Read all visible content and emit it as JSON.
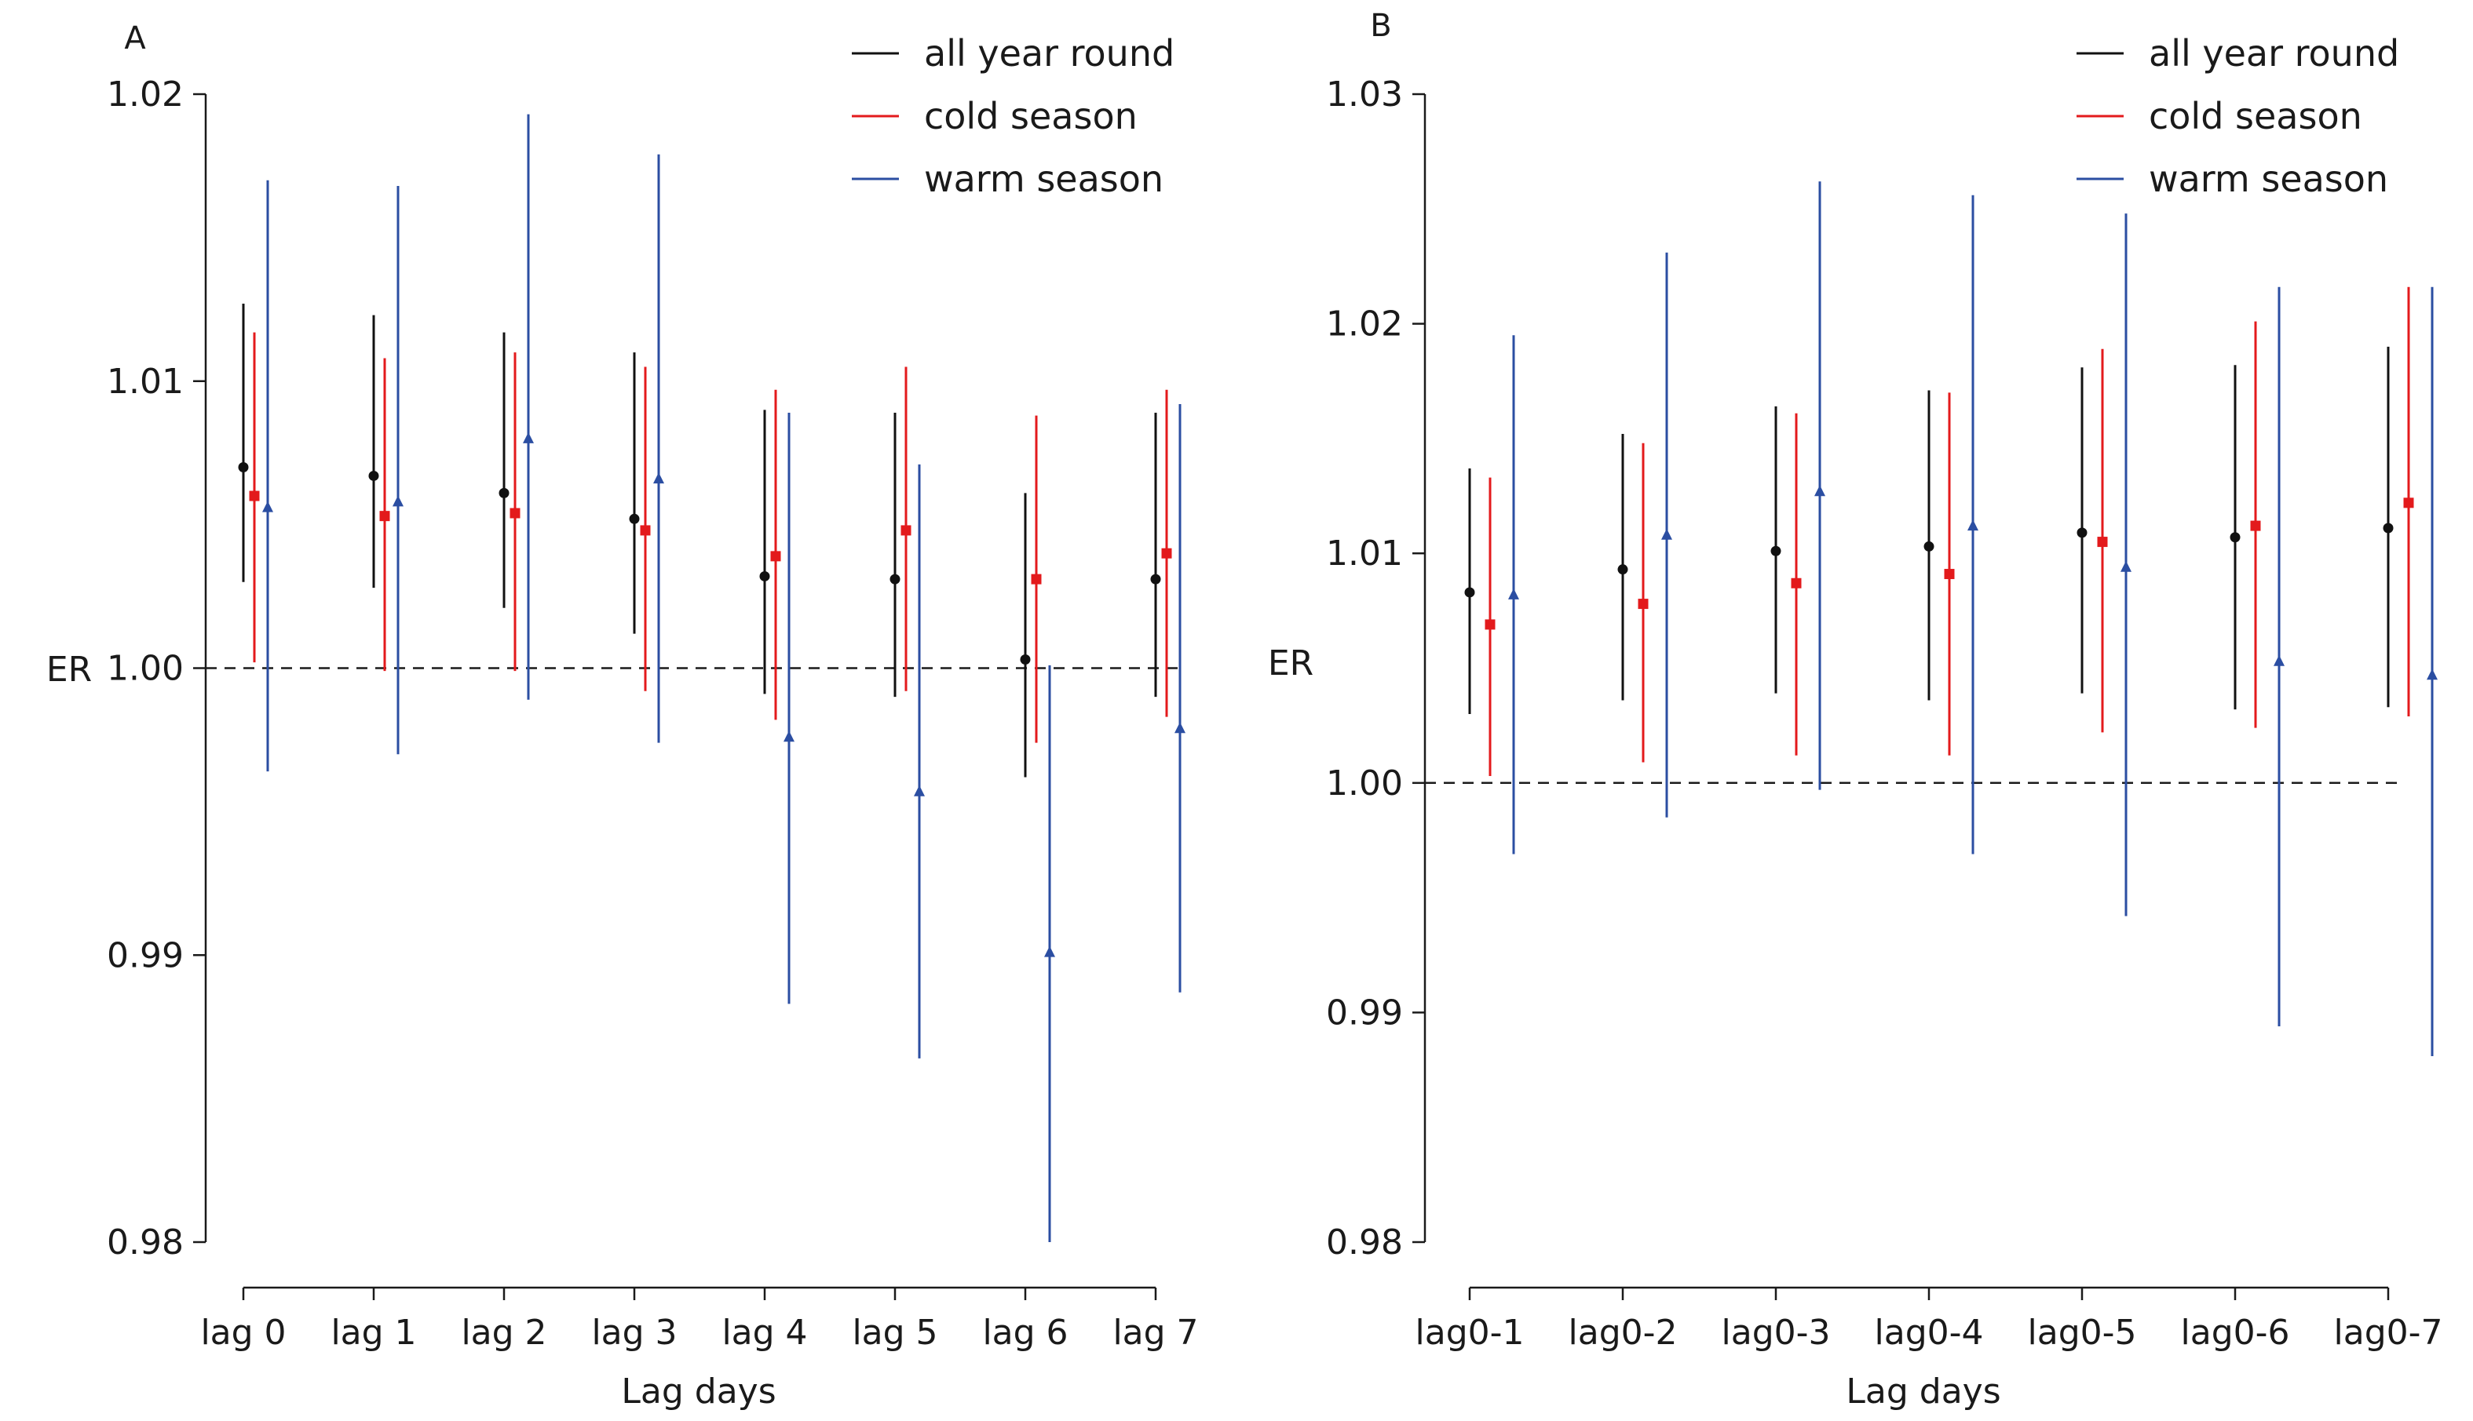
{
  "chart_data": [
    {
      "type": "errorbar",
      "panel_label": "A",
      "xlabel": "Lag days",
      "ylabel": "ER",
      "categories": [
        "lag 0",
        "lag 1",
        "lag 2",
        "lag 3",
        "lag 4",
        "lag 5",
        "lag 6",
        "lag 7"
      ],
      "ylim": [
        0.98,
        1.02
      ],
      "yticks": [
        0.98,
        0.99,
        1.0,
        1.01,
        1.02
      ],
      "ytick_labels": [
        "0.98",
        "0.99",
        "1.00",
        "1.01",
        "1.02"
      ],
      "reference_line": 1.0,
      "legend_position": "top-right",
      "series": [
        {
          "name": "all year round",
          "color": "#111111",
          "marker": "circle",
          "values": [
            1.007,
            1.0067,
            1.0061,
            1.0052,
            1.0032,
            1.0031,
            1.0003,
            1.0031
          ],
          "lower": [
            1.003,
            1.0028,
            1.0021,
            1.0012,
            0.9991,
            0.999,
            0.9962,
            0.999
          ],
          "upper": [
            1.0127,
            1.0123,
            1.0117,
            1.011,
            1.009,
            1.0089,
            1.0061,
            1.0089
          ]
        },
        {
          "name": "cold season",
          "color": "#e31a1c",
          "marker": "square",
          "values": [
            1.006,
            1.0053,
            1.0054,
            1.0048,
            1.0039,
            1.0048,
            1.0031,
            1.004
          ],
          "lower": [
            1.0002,
            0.9999,
            0.9999,
            0.9992,
            0.9982,
            0.9992,
            0.9974,
            0.9983
          ],
          "upper": [
            1.0117,
            1.0108,
            1.011,
            1.0105,
            1.0097,
            1.0105,
            1.0088,
            1.0097
          ]
        },
        {
          "name": "warm season",
          "color": "#2b4ea2",
          "marker": "triangle",
          "values": [
            1.0056,
            1.0058,
            1.008,
            1.0066,
            0.9976,
            0.9957,
            0.9901,
            0.9979
          ],
          "lower": [
            0.9964,
            0.997,
            0.9989,
            0.9974,
            0.9883,
            0.9864,
            0.98,
            0.9887
          ],
          "upper": [
            1.017,
            1.0168,
            1.0193,
            1.0179,
            1.0089,
            1.0071,
            1.0001,
            1.0092
          ]
        }
      ]
    },
    {
      "type": "errorbar",
      "panel_label": "B",
      "xlabel": "Lag days",
      "ylabel": "ER",
      "categories": [
        "lag0-1",
        "lag0-2",
        "lag0-3",
        "lag0-4",
        "lag0-5",
        "lag0-6",
        "lag0-7"
      ],
      "ylim": [
        0.98,
        1.03
      ],
      "yticks": [
        0.98,
        0.99,
        1.0,
        1.01,
        1.02,
        1.03
      ],
      "ytick_labels": [
        "0.98",
        "0.99",
        "1.00",
        "1.01",
        "1.02",
        "1.03"
      ],
      "reference_line": 1.0,
      "legend_position": "top-right",
      "series": [
        {
          "name": "all year round",
          "color": "#111111",
          "marker": "circle",
          "values": [
            1.0083,
            1.0093,
            1.0101,
            1.0103,
            1.0109,
            1.0107,
            1.0111
          ],
          "lower": [
            1.003,
            1.0036,
            1.0039,
            1.0036,
            1.0039,
            1.0032,
            1.0033
          ],
          "upper": [
            1.0137,
            1.0152,
            1.0164,
            1.0171,
            1.0181,
            1.0182,
            1.019
          ]
        },
        {
          "name": "cold season",
          "color": "#e31a1c",
          "marker": "square",
          "values": [
            1.0069,
            1.0078,
            1.0087,
            1.0091,
            1.0105,
            1.0112,
            1.0122
          ],
          "lower": [
            1.0003,
            1.0009,
            1.0012,
            1.0012,
            1.0022,
            1.0024,
            1.0029
          ],
          "upper": [
            1.0133,
            1.0148,
            1.0161,
            1.017,
            1.0189,
            1.0201,
            1.0216
          ]
        },
        {
          "name": "warm season",
          "color": "#2b4ea2",
          "marker": "triangle",
          "values": [
            1.0082,
            1.0108,
            1.0127,
            1.0112,
            1.0094,
            1.0053,
            1.0047
          ],
          "lower": [
            0.9969,
            0.9985,
            0.9997,
            0.9969,
            0.9942,
            0.9894,
            0.9881
          ],
          "upper": [
            1.0195,
            1.0231,
            1.0262,
            1.0256,
            1.0248,
            1.0216,
            1.0216
          ]
        }
      ]
    }
  ]
}
